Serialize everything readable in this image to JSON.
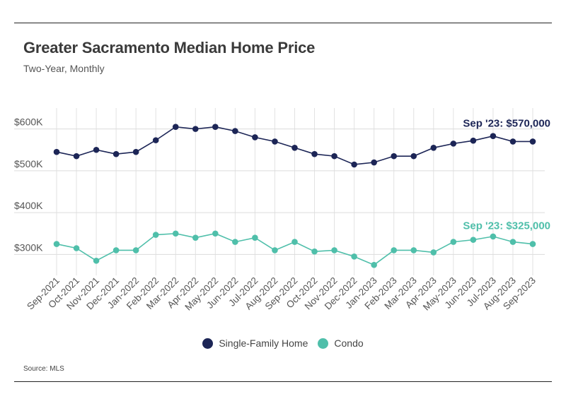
{
  "title": "Greater Sacramento Median Home Price",
  "subtitle": "Two-Year, Monthly",
  "source": "Source:  MLS",
  "colors": {
    "sfh": "#1c2556",
    "condo": "#4fbfaa",
    "grid": "#dddddd",
    "text": "#444444"
  },
  "chart_data": {
    "type": "line",
    "title": "Greater Sacramento Median Home Price",
    "subtitle": "Two-Year, Monthly",
    "categories": [
      "Sep-2021",
      "Oct-2021",
      "Nov-2021",
      "Dec-2021",
      "Jan-2022",
      "Feb-2022",
      "Mar-2022",
      "Apr-2022",
      "May-2022",
      "Jun-2022",
      "Jul-2022",
      "Aug-2022",
      "Sep-2022",
      "Oct-2022",
      "Nov-2022",
      "Dec-2022",
      "Jan-2023",
      "Feb-2023",
      "Mar-2023",
      "Apr-2023",
      "May-2023",
      "Jun-2023",
      "Jul-2023",
      "Aug-2023",
      "Sep-2023"
    ],
    "y_ticks": [
      300000,
      400000,
      500000,
      600000
    ],
    "y_tick_labels": [
      "$300K",
      "$400K",
      "$500K",
      "$600K"
    ],
    "ylim": [
      250000,
      650000
    ],
    "grid": true,
    "legend_position": "bottom-center",
    "series": [
      {
        "name": "Single-Family Home",
        "color": "#1c2556",
        "values": [
          545000,
          535000,
          550000,
          540000,
          545000,
          573000,
          605000,
          600000,
          605000,
          595000,
          580000,
          570000,
          555000,
          540000,
          535000,
          515000,
          520000,
          535000,
          535000,
          555000,
          565000,
          572000,
          583000,
          570000,
          570000
        ],
        "end_label": "Sep '23: $570,000"
      },
      {
        "name": "Condo",
        "color": "#4fbfaa",
        "values": [
          325000,
          315000,
          285000,
          310000,
          310000,
          347000,
          350000,
          340000,
          350000,
          330000,
          340000,
          310000,
          330000,
          307000,
          310000,
          295000,
          275000,
          310000,
          310000,
          305000,
          330000,
          335000,
          343000,
          330000,
          325000
        ],
        "end_label": "Sep '23: $325,000"
      }
    ]
  }
}
